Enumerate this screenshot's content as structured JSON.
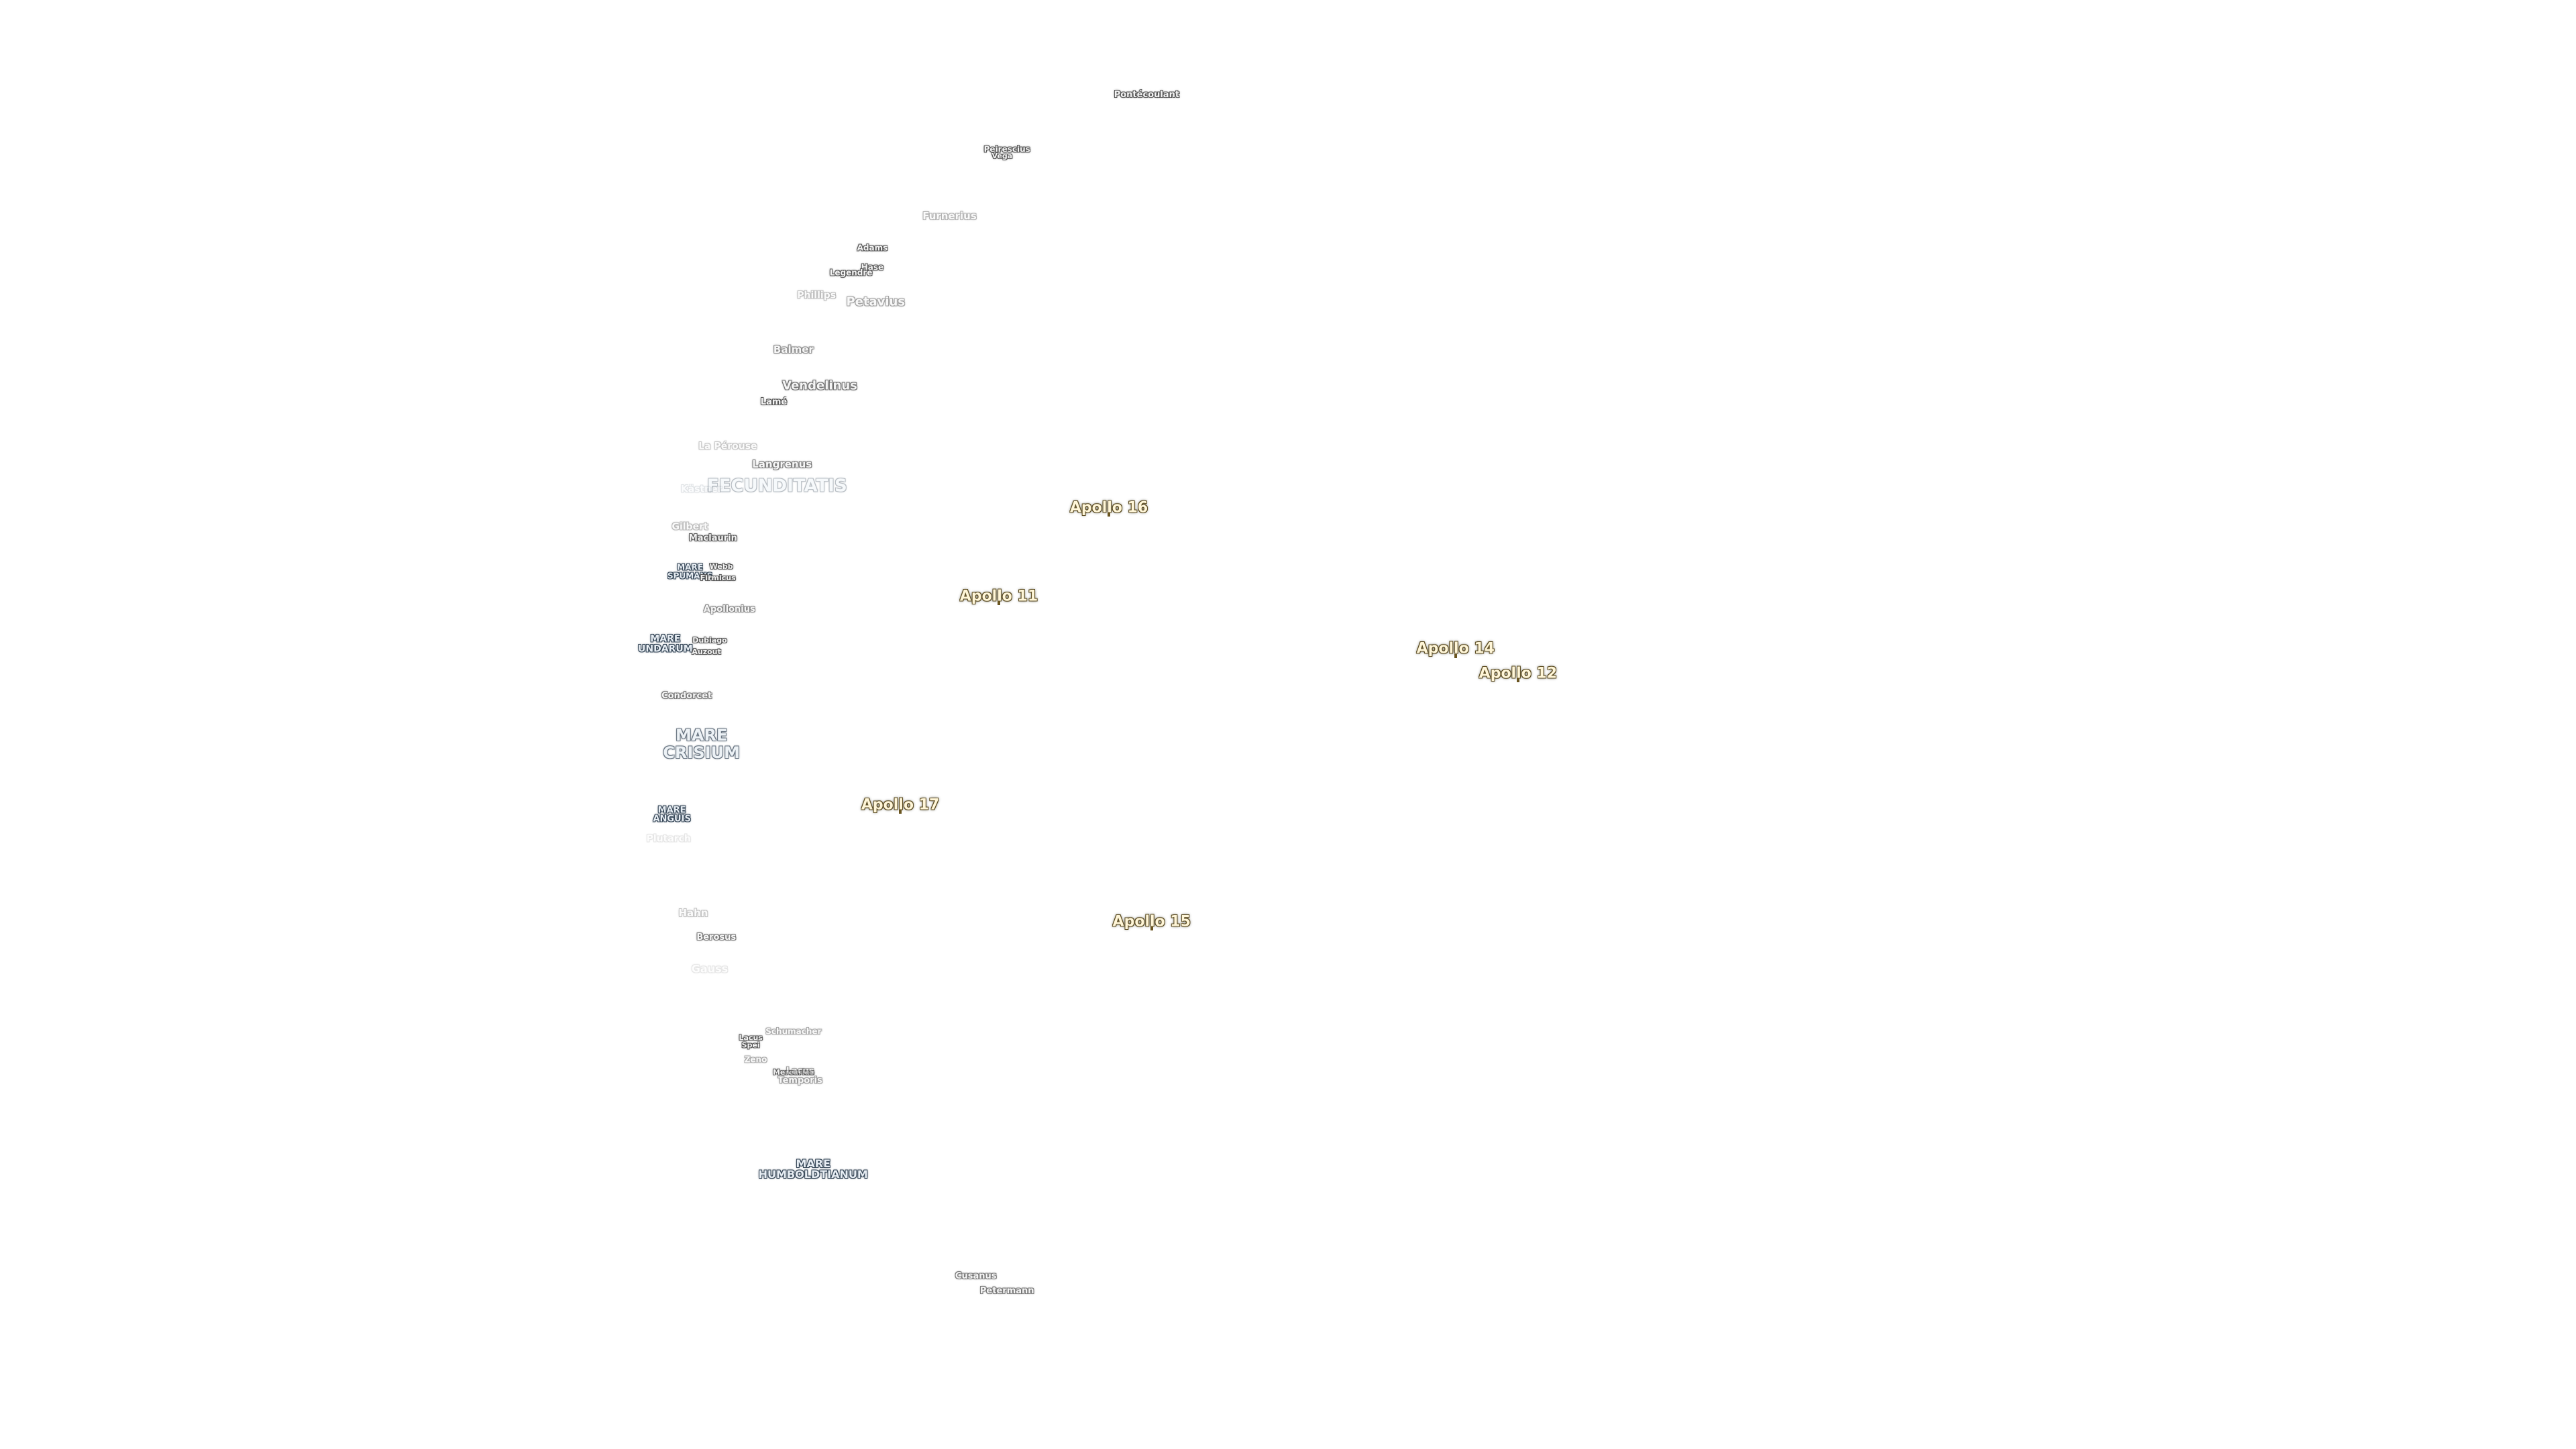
{
  "labels": [
    {
      "lines": [
        "Pontécoulant"
      ]
    },
    {
      "lines": [
        "Peirescius"
      ]
    },
    {
      "lines": [
        "Vega"
      ]
    },
    {
      "lines": [
        "Furnerius"
      ]
    },
    {
      "lines": [
        "Adams"
      ]
    },
    {
      "lines": [
        "Hase"
      ]
    },
    {
      "lines": [
        "Legendre"
      ]
    },
    {
      "lines": [
        "Phillips"
      ]
    },
    {
      "lines": [
        "Petavius"
      ]
    },
    {
      "lines": [
        "Balmer"
      ]
    },
    {
      "lines": [
        "Vendelinus"
      ]
    },
    {
      "lines": [
        "Lamé"
      ]
    },
    {
      "lines": [
        "La Pérouse"
      ]
    },
    {
      "lines": [
        "Langrenus"
      ]
    },
    {
      "lines": [
        "Kästner"
      ]
    },
    {
      "lines": [
        "FECUNDITATIS"
      ]
    },
    {
      "lines": [
        "Gilbert"
      ]
    },
    {
      "lines": [
        "Maclaurin"
      ]
    },
    {
      "lines": [
        "MARE",
        "SPUMANS"
      ]
    },
    {
      "lines": [
        "Webb"
      ]
    },
    {
      "lines": [
        "Firmicus"
      ]
    },
    {
      "lines": [
        "Apollonius"
      ]
    },
    {
      "lines": [
        "MARE",
        "UNDARUM"
      ]
    },
    {
      "lines": [
        "Dubiago"
      ]
    },
    {
      "lines": [
        "Auzout"
      ]
    },
    {
      "lines": [
        "Condorcet"
      ]
    },
    {
      "lines": [
        "MARE",
        "CRISIUM"
      ]
    },
    {
      "lines": [
        "MARE",
        "ANGUIS"
      ]
    },
    {
      "lines": [
        "Plutarch"
      ]
    },
    {
      "lines": [
        "Hahn"
      ]
    },
    {
      "lines": [
        "Berosus"
      ]
    },
    {
      "lines": [
        "Gauss"
      ]
    },
    {
      "lines": [
        "Schumacher"
      ]
    },
    {
      "lines": [
        "Lacus",
        "Spei"
      ]
    },
    {
      "lines": [
        "Zeno"
      ]
    },
    {
      "lines": [
        "Mercurius"
      ]
    },
    {
      "lines": [
        "Lacus",
        "Temporis"
      ]
    },
    {
      "lines": [
        "MARE",
        "HUMBOLDTIANUM"
      ]
    },
    {
      "lines": [
        "Cusanus"
      ]
    },
    {
      "lines": [
        "Petermann"
      ]
    }
  ],
  "landing_sites": [
    "Apollo 16",
    "Apollo 11",
    "Apollo 14",
    "Apollo 12",
    "Apollo 17",
    "Apollo 15"
  ]
}
